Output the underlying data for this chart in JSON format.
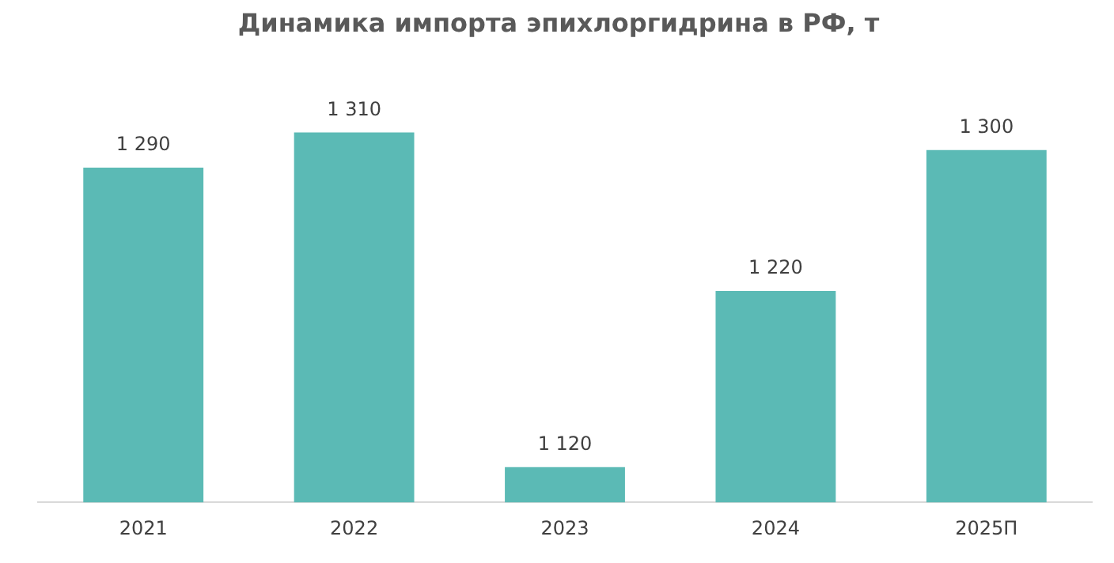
{
  "chart_data": {
    "type": "bar",
    "title": "Динамика импорта эпихлоргидрина в РФ, т",
    "categories": [
      "2021",
      "2022",
      "2023",
      "2024",
      "2025П"
    ],
    "values": [
      1290,
      1310,
      1120,
      1220,
      1300
    ],
    "value_labels": [
      "1 290",
      "1 310",
      "1 120",
      "1 220",
      "1 300"
    ],
    "color": "#5bbab5",
    "tick_labels": "x",
    "grid": false,
    "legend": false
  }
}
